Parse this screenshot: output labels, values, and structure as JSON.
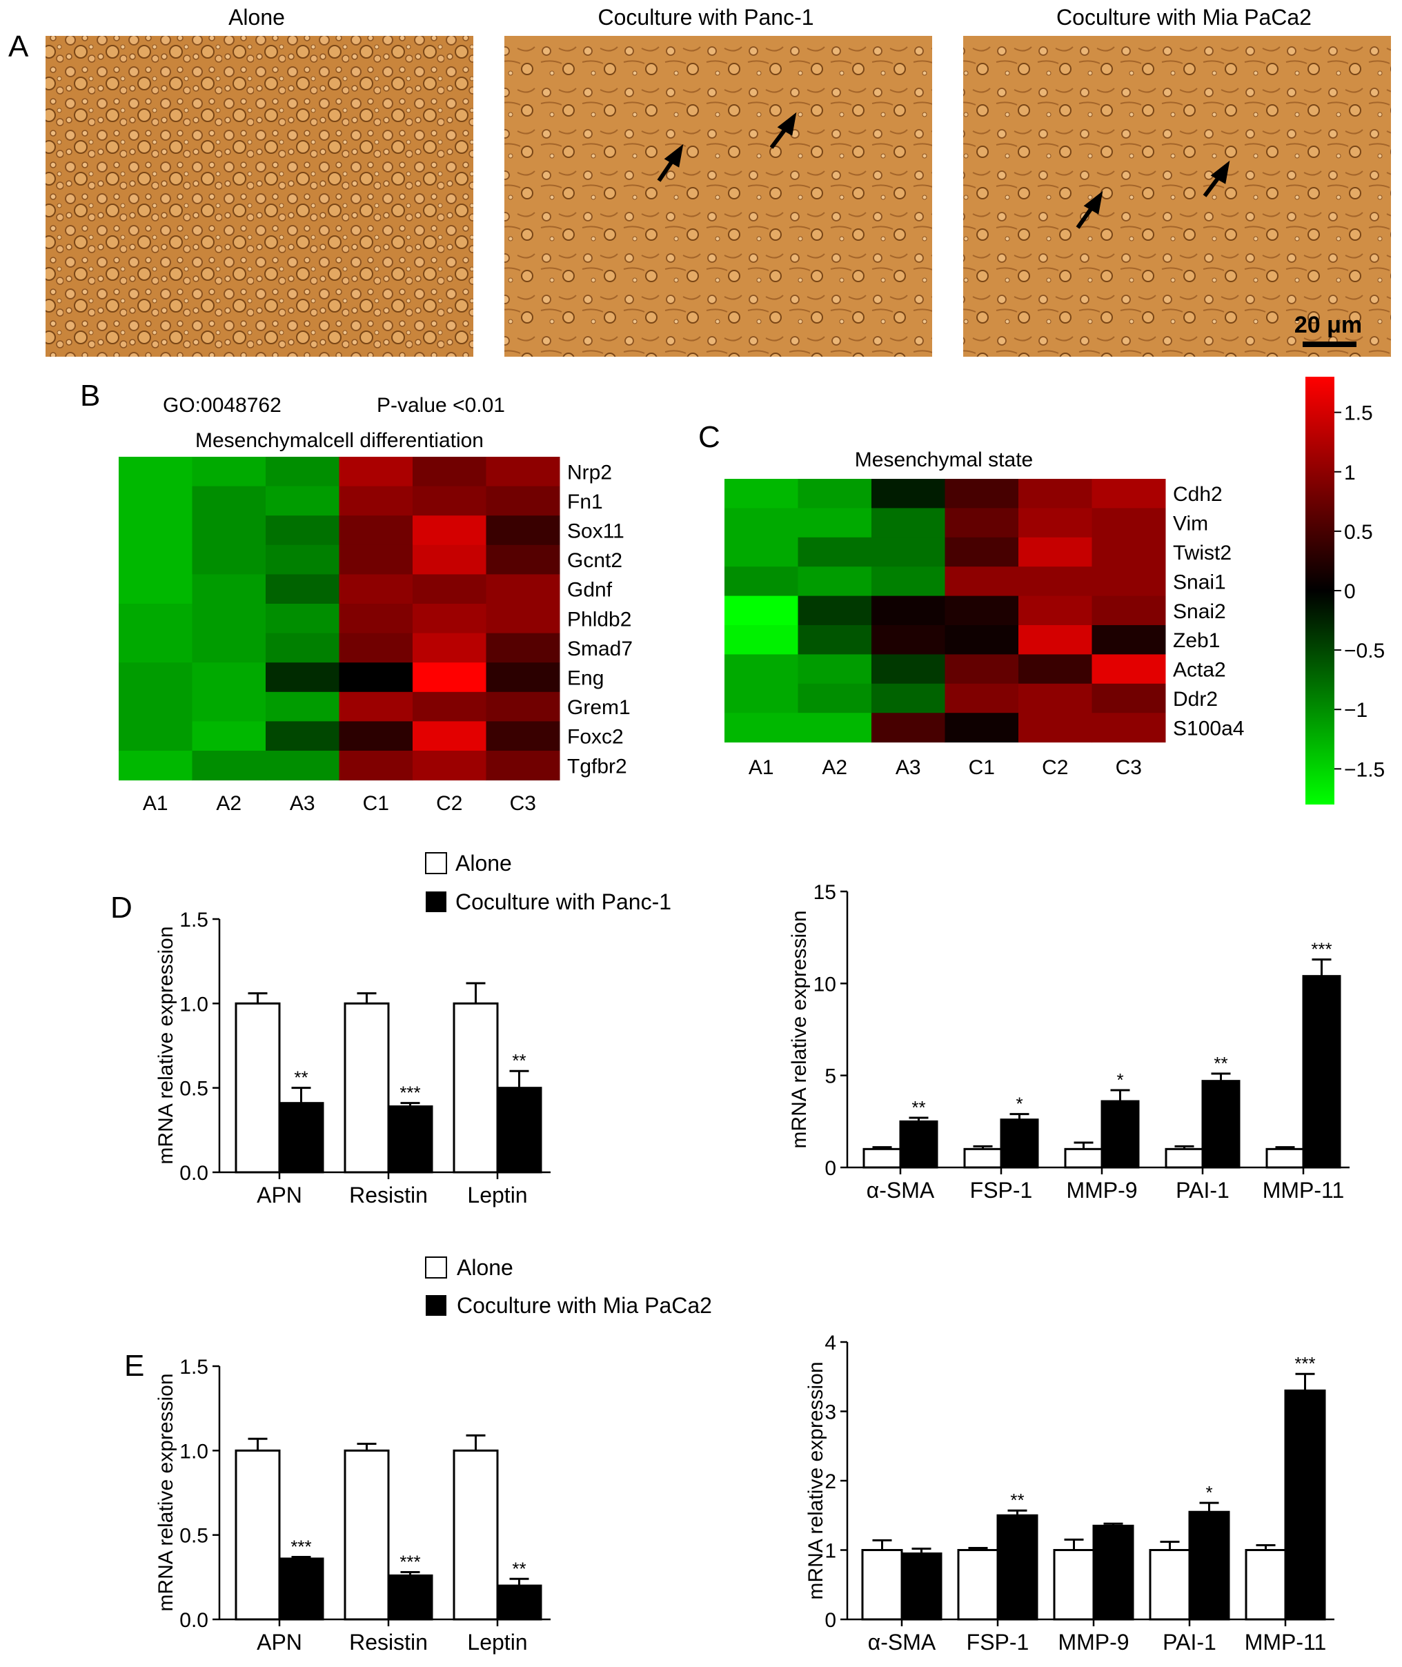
{
  "panel_a": {
    "letter": "A",
    "images": [
      {
        "title": "Alone",
        "arrows": false
      },
      {
        "title": "Coculture with Panc-1",
        "arrows": true
      },
      {
        "title": "Coculture with Mia PaCa2",
        "arrows": true
      }
    ],
    "scale_bar": "20 μm"
  },
  "panel_b": {
    "letter": "B",
    "go_term": "GO:0048762",
    "p_value": "P-value <0.01",
    "title": "Mesenchymalcell differentiation",
    "columns": [
      "A1",
      "A2",
      "A3",
      "C1",
      "C2",
      "C3"
    ],
    "rows": [
      "Nrp2",
      "Fn1",
      "Sox11",
      "Gcnt2",
      "Gdnf",
      "Phldb2",
      "Smad7",
      "Eng",
      "Grem1",
      "Foxc2",
      "Tgfbr2"
    ],
    "values": [
      [
        -1.3,
        -1.2,
        -1.0,
        1.2,
        0.8,
        1.0
      ],
      [
        -1.3,
        -1.0,
        -1.1,
        1.0,
        0.9,
        0.8
      ],
      [
        -1.3,
        -1.0,
        -0.8,
        0.8,
        1.5,
        0.4
      ],
      [
        -1.3,
        -1.0,
        -0.9,
        0.8,
        1.4,
        0.6
      ],
      [
        -1.3,
        -1.1,
        -0.7,
        1.0,
        0.9,
        1.0
      ],
      [
        -1.2,
        -1.1,
        -1.0,
        0.9,
        1.1,
        1.0
      ],
      [
        -1.2,
        -1.1,
        -0.9,
        0.8,
        1.3,
        0.6
      ],
      [
        -1.1,
        -1.2,
        -0.3,
        0.0,
        1.8,
        0.3
      ],
      [
        -1.1,
        -1.2,
        -1.1,
        1.1,
        0.9,
        0.8
      ],
      [
        -1.1,
        -1.3,
        -0.5,
        0.3,
        1.6,
        0.4
      ],
      [
        -1.3,
        -1.0,
        -1.0,
        0.9,
        1.1,
        0.8
      ]
    ]
  },
  "panel_c": {
    "letter": "C",
    "title": "Mesenchymal state",
    "columns": [
      "A1",
      "A2",
      "A3",
      "C1",
      "C2",
      "C3"
    ],
    "rows": [
      "Cdh2",
      "Vim",
      "Twist2",
      "Snai1",
      "Snai2",
      "Zeb1",
      "Acta2",
      "Ddr2",
      "S100a4"
    ],
    "values": [
      [
        -1.3,
        -1.1,
        -0.2,
        0.5,
        1.0,
        1.2
      ],
      [
        -1.2,
        -1.2,
        -0.8,
        0.7,
        1.1,
        1.0
      ],
      [
        -1.2,
        -0.8,
        -0.8,
        0.5,
        1.4,
        1.0
      ],
      [
        -1.0,
        -1.1,
        -0.9,
        1.0,
        1.0,
        1.0
      ],
      [
        -1.8,
        -0.4,
        0.1,
        0.2,
        1.1,
        0.9
      ],
      [
        -1.7,
        -0.6,
        0.2,
        0.1,
        1.5,
        0.2
      ],
      [
        -1.2,
        -1.1,
        -0.4,
        0.7,
        0.4,
        1.6
      ],
      [
        -1.2,
        -1.0,
        -0.7,
        0.9,
        1.0,
        0.8
      ],
      [
        -1.3,
        -1.3,
        0.5,
        0.1,
        1.0,
        1.0
      ]
    ],
    "colorbar_ticks": [
      "1.5",
      "1",
      "0.5",
      "0",
      "−0.5",
      "−1",
      "−1.5"
    ],
    "colorbar_tick_values": [
      1.5,
      1,
      0.5,
      0,
      -0.5,
      -1,
      -1.5
    ],
    "colorbar_range": [
      -1.8,
      1.8
    ]
  },
  "panel_d": {
    "letter": "D",
    "legend": [
      "Alone",
      "Coculture with Panc-1"
    ]
  },
  "panel_e": {
    "letter": "E",
    "legend": [
      "Alone",
      "Coculture with Mia PaCa2"
    ]
  },
  "colors": {
    "high": "#ff0000",
    "mid": "#000000",
    "low": "#00ff00",
    "bar_alone": "#ffffff",
    "bar_coculture": "#000000"
  },
  "chart_data": [
    {
      "id": "d_left",
      "type": "bar",
      "categories": [
        "APN",
        "Resistin",
        "Leptin"
      ],
      "ylabel": "mRNA relative expression",
      "ylim": [
        0,
        1.5
      ],
      "yticks": [
        "0.0",
        "0.5",
        "1.0",
        "1.5"
      ],
      "ytick_values": [
        0,
        0.5,
        1.0,
        1.5
      ],
      "series": [
        {
          "values": [
            1.0,
            1.0,
            1.0
          ],
          "errors": [
            0.06,
            0.06,
            0.12
          ]
        },
        {
          "values": [
            0.41,
            0.39,
            0.5
          ],
          "errors": [
            0.09,
            0.02,
            0.1
          ]
        }
      ],
      "significance": [
        "**",
        "***",
        "**"
      ]
    },
    {
      "id": "d_right",
      "type": "bar",
      "categories": [
        "α-SMA",
        "FSP-1",
        "MMP-9",
        "PAI-1",
        "MMP-11"
      ],
      "ylabel": "mRNA relative expression",
      "ylim": [
        0,
        15
      ],
      "yticks": [
        "0",
        "5",
        "10",
        "15"
      ],
      "ytick_values": [
        0,
        5,
        10,
        15
      ],
      "series": [
        {
          "values": [
            1.0,
            1.0,
            1.0,
            1.0,
            1.0
          ],
          "errors": [
            0.1,
            0.15,
            0.35,
            0.15,
            0.1
          ]
        },
        {
          "values": [
            2.5,
            2.6,
            3.6,
            4.7,
            10.4
          ],
          "errors": [
            0.2,
            0.3,
            0.6,
            0.4,
            0.9
          ]
        }
      ],
      "significance": [
        "**",
        "*",
        "*",
        "**",
        "***"
      ]
    },
    {
      "id": "e_left",
      "type": "bar",
      "categories": [
        "APN",
        "Resistin",
        "Leptin"
      ],
      "ylabel": "mRNA relative expression",
      "ylim": [
        0,
        1.5
      ],
      "yticks": [
        "0.0",
        "0.5",
        "1.0",
        "1.5"
      ],
      "ytick_values": [
        0,
        0.5,
        1.0,
        1.5
      ],
      "series": [
        {
          "values": [
            1.0,
            1.0,
            1.0
          ],
          "errors": [
            0.07,
            0.04,
            0.09
          ]
        },
        {
          "values": [
            0.36,
            0.26,
            0.2
          ],
          "errors": [
            0.01,
            0.02,
            0.04
          ]
        }
      ],
      "significance": [
        "***",
        "***",
        "**"
      ]
    },
    {
      "id": "e_right",
      "type": "bar",
      "categories": [
        "α-SMA",
        "FSP-1",
        "MMP-9",
        "PAI-1",
        "MMP-11"
      ],
      "ylabel": "mRNA relative expression",
      "ylim": [
        0,
        4
      ],
      "yticks": [
        "0",
        "1",
        "2",
        "3",
        "4"
      ],
      "ytick_values": [
        0,
        1,
        2,
        3,
        4
      ],
      "series": [
        {
          "values": [
            1.0,
            1.0,
            1.0,
            1.0,
            1.0
          ],
          "errors": [
            0.14,
            0.03,
            0.15,
            0.12,
            0.07
          ]
        },
        {
          "values": [
            0.95,
            1.5,
            1.35,
            1.55,
            3.3
          ],
          "errors": [
            0.07,
            0.07,
            0.03,
            0.13,
            0.24
          ]
        }
      ],
      "significance": [
        "",
        "**",
        "",
        "*",
        "***"
      ]
    }
  ]
}
